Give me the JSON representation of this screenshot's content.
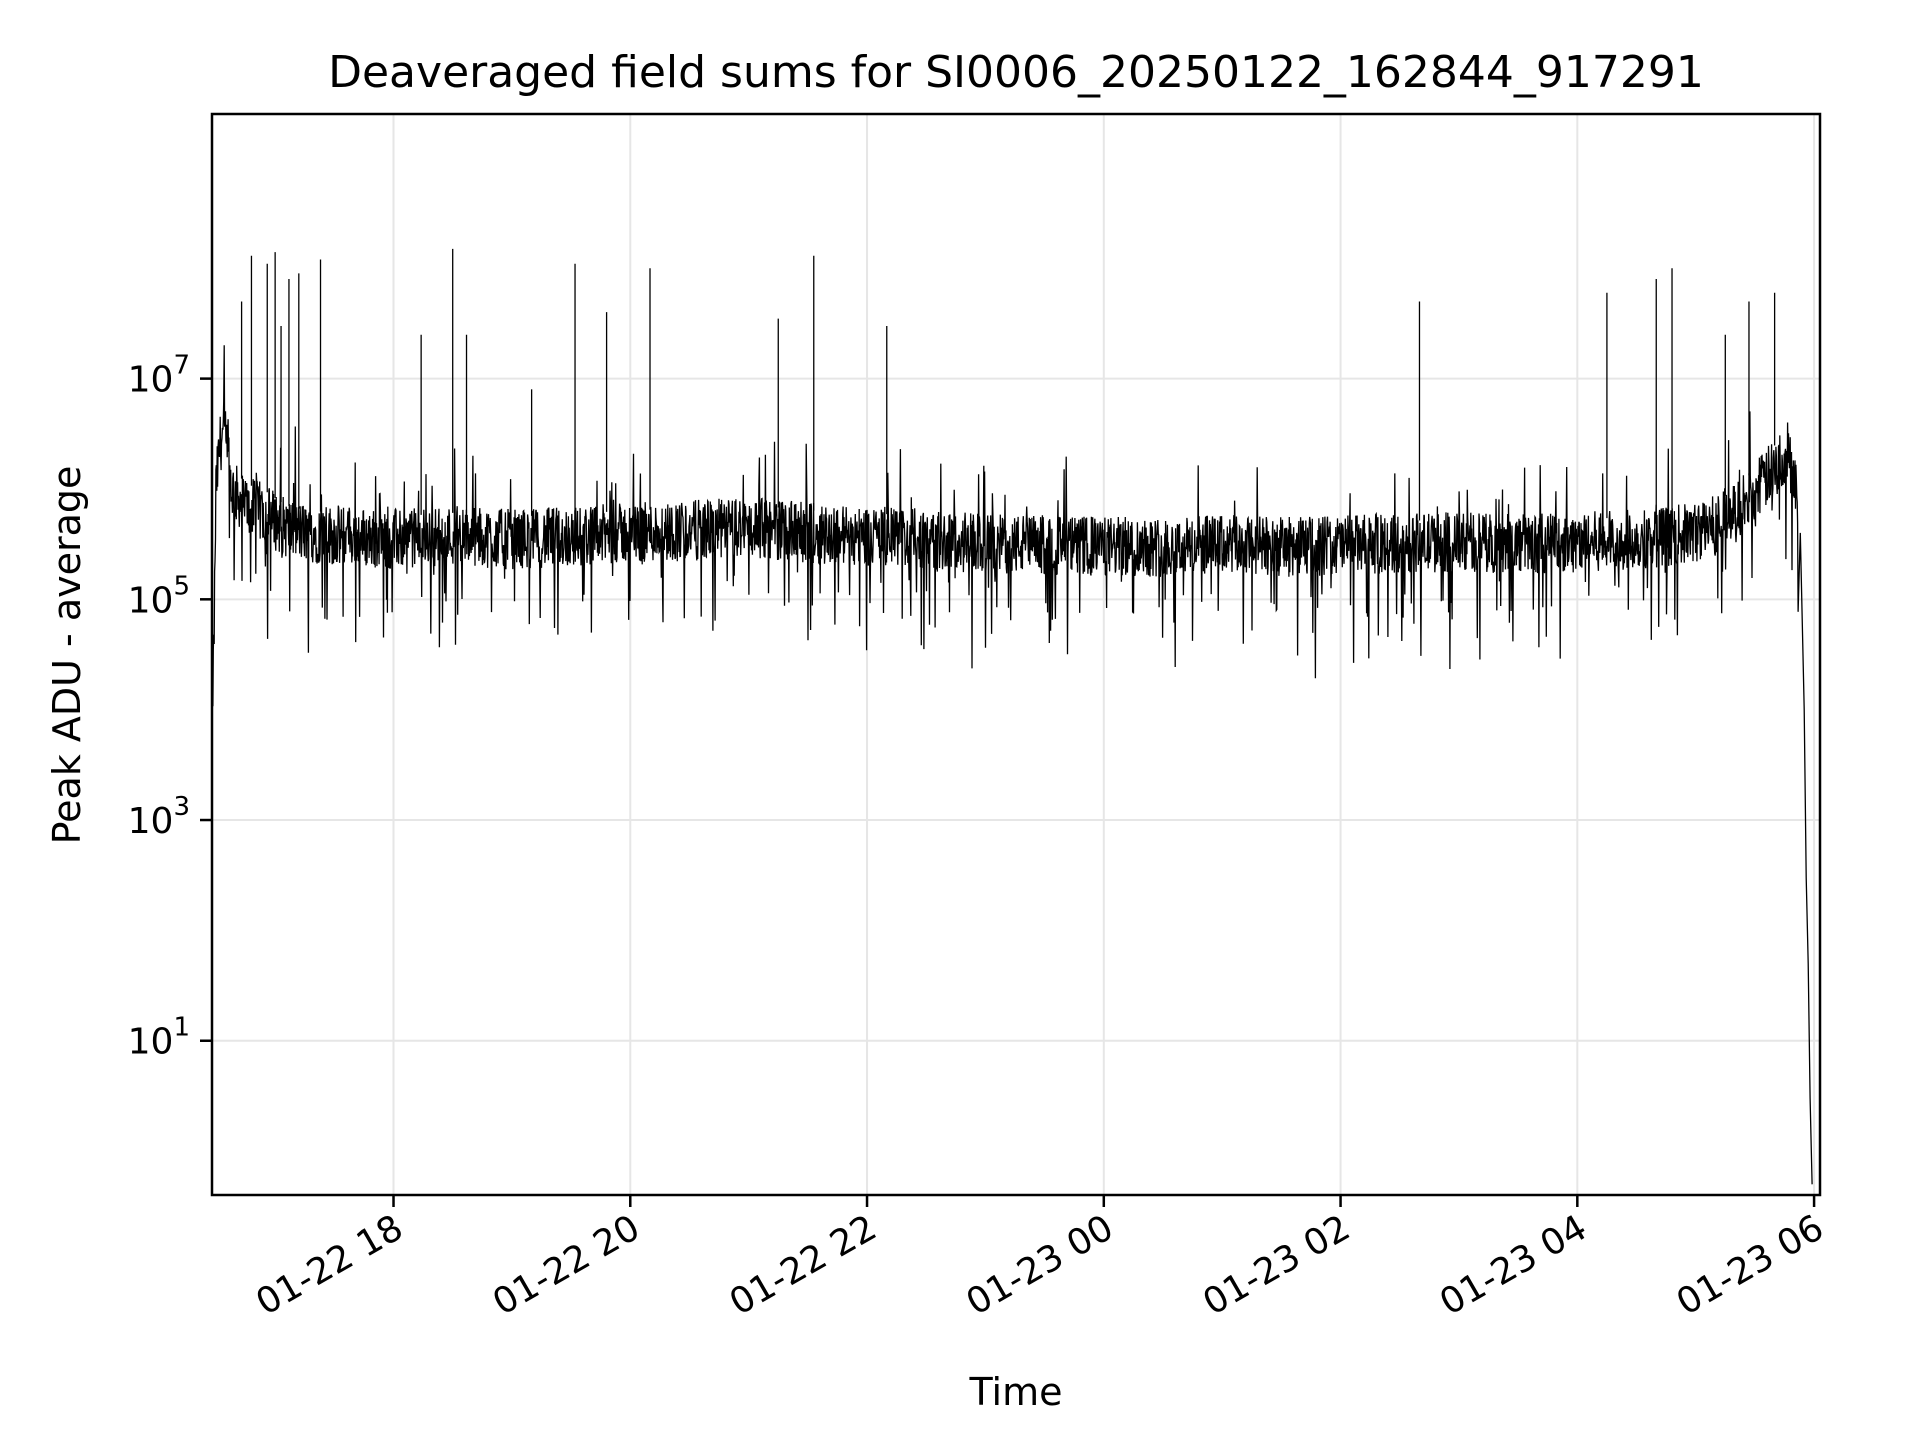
{
  "chart_data": {
    "type": "line",
    "title": "Deaveraged field sums for SI0006_20250122_162844_917291",
    "xlabel": "Time",
    "ylabel": "Peak ADU - average",
    "y_scale": "log",
    "ylim": [
      0.4,
      2500000000
    ],
    "xlim": [
      "2025-01-22 16:28",
      "2025-01-23 06:03"
    ],
    "grid": true,
    "legend": "none",
    "line_color": "#000000",
    "x_ticks": [
      {
        "value": "2025-01-22 18:00",
        "label": "01-22 18"
      },
      {
        "value": "2025-01-22 20:00",
        "label": "01-22 20"
      },
      {
        "value": "2025-01-22 22:00",
        "label": "01-22 22"
      },
      {
        "value": "2025-01-23 00:00",
        "label": "01-23 00"
      },
      {
        "value": "2025-01-23 02:00",
        "label": "01-23 02"
      },
      {
        "value": "2025-01-23 04:00",
        "label": "01-23 04"
      },
      {
        "value": "2025-01-23 06:00",
        "label": "01-23 06"
      }
    ],
    "y_ticks": [
      {
        "value": 10,
        "base": "10",
        "exp": "1"
      },
      {
        "value": 1000,
        "base": "10",
        "exp": "3"
      },
      {
        "value": 100000,
        "base": "10",
        "exp": "5"
      },
      {
        "value": 10000000,
        "base": "10",
        "exp": "7"
      }
    ],
    "series": [
      {
        "x": [
          "2025-01-22 16:28",
          "2025-01-22 16:29",
          "2025-01-22 16:30",
          "2025-01-22 16:32",
          "2025-01-22 16:34",
          "2025-01-22 16:38",
          "2025-01-22 16:45",
          "2025-01-22 16:55",
          "2025-01-22 17:05",
          "2025-01-22 17:15",
          "2025-01-22 17:30",
          "2025-01-22 17:45",
          "2025-01-22 18:00",
          "2025-01-22 18:30",
          "2025-01-22 19:00",
          "2025-01-22 19:30",
          "2025-01-22 20:00",
          "2025-01-22 20:30",
          "2025-01-22 21:00",
          "2025-01-22 21:30",
          "2025-01-22 22:00",
          "2025-01-22 22:30",
          "2025-01-22 23:00",
          "2025-01-22 23:30",
          "2025-01-23 00:00",
          "2025-01-23 00:30",
          "2025-01-23 01:00",
          "2025-01-23 01:30",
          "2025-01-23 02:00",
          "2025-01-23 02:30",
          "2025-01-23 03:00",
          "2025-01-23 03:30",
          "2025-01-23 04:00",
          "2025-01-23 04:30",
          "2025-01-23 05:00",
          "2025-01-23 05:20",
          "2025-01-23 05:35",
          "2025-01-23 05:45",
          "2025-01-23 05:50",
          "2025-01-23 05:53",
          "2025-01-23 05:55",
          "2025-01-23 05:56",
          "2025-01-23 05:57",
          "2025-01-23 05:58",
          "2025-01-23 05:59"
        ],
        "y": [
          8000,
          40000,
          1000000,
          2500000,
          3500000,
          1000000,
          700000,
          600000,
          450000,
          400000,
          380000,
          360000,
          350000,
          380000,
          350000,
          370000,
          400000,
          420000,
          450000,
          400000,
          380000,
          350000,
          320000,
          310000,
          300000,
          300000,
          310000,
          300000,
          310000,
          320000,
          330000,
          320000,
          330000,
          350000,
          400000,
          600000,
          1200000,
          2000000,
          1500000,
          400000,
          10000,
          300,
          50,
          3,
          0.5
        ]
      },
      {
        "x": [
          "2025-01-22 16:43",
          "2025-01-22 16:48",
          "2025-01-22 16:56",
          "2025-01-22 17:00",
          "2025-01-22 17:03",
          "2025-01-22 17:07",
          "2025-01-22 17:12",
          "2025-01-22 17:23",
          "2025-01-22 18:14",
          "2025-01-22 18:30",
          "2025-01-22 18:37",
          "2025-01-22 19:10",
          "2025-01-22 19:32",
          "2025-01-22 19:48",
          "2025-01-22 20:10",
          "2025-01-22 21:15",
          "2025-01-22 21:33",
          "2025-01-22 22:10",
          "2025-01-23 02:40",
          "2025-01-23 04:15",
          "2025-01-23 04:40",
          "2025-01-23 04:48",
          "2025-01-23 05:15",
          "2025-01-23 05:27",
          "2025-01-23 05:40"
        ],
        "y": [
          50000000,
          130000000,
          110000000,
          140000000,
          30000000,
          80000000,
          90000000,
          120000000,
          25000000,
          150000000,
          25000000,
          8000000,
          110000000,
          40000000,
          100000000,
          35000000,
          130000000,
          30000000,
          50000000,
          60000000,
          80000000,
          100000000,
          25000000,
          50000000,
          60000000
        ]
      }
    ]
  }
}
